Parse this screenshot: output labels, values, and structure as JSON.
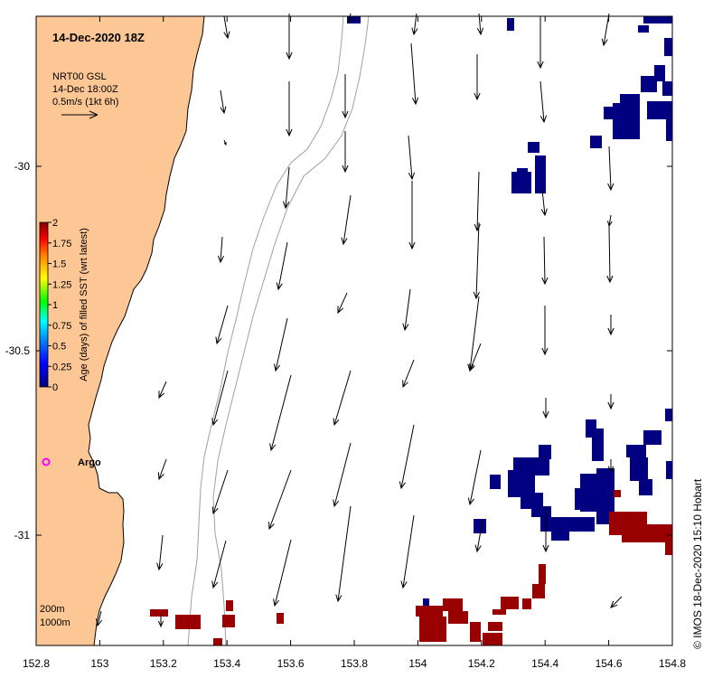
{
  "title": "14-Dec-2020 18Z",
  "legend": {
    "product": "NRT00 GSL",
    "time": "14-Dec 18:00Z",
    "scale": "0.5m/s (1kt 6h)"
  },
  "colorbar": {
    "label": "Age (days) of filled SST (wrt latest)",
    "ticks": [
      "2",
      "1.75",
      "1.5",
      "1.25",
      "1",
      "0.75",
      "0.5",
      "0.25",
      "0"
    ],
    "colors": [
      "#000080",
      "#0000ff",
      "#0080ff",
      "#00ffff",
      "#00ff00",
      "#ffff00",
      "#ff8000",
      "#ff0000",
      "#800000"
    ]
  },
  "argo_label": "Argo",
  "contours": {
    "shallow": "200m",
    "deep": "1000m"
  },
  "credit": "© IMOS 18-Dec-2020 15:10 Hobart",
  "x_ticks": [
    "152.8",
    "153",
    "153.2",
    "153.4",
    "153.6",
    "153.8",
    "154",
    "154.2",
    "154.4",
    "154.6",
    "154.8"
  ],
  "y_ticks": [
    "-30",
    "-30.5",
    "-31"
  ],
  "colors": {
    "land": "#fcc794",
    "old_sst": "#000080",
    "new_sst": "#990000",
    "argo": "#ff00ff"
  }
}
